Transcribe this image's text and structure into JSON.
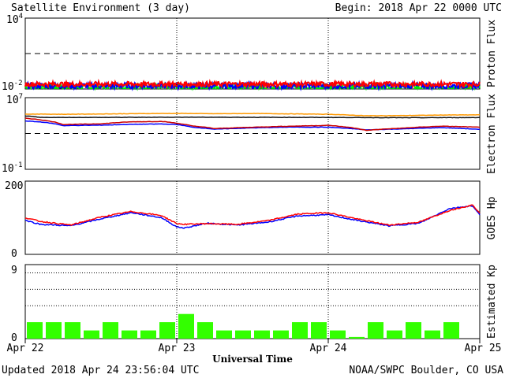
{
  "header": {
    "title": "Satellite Environment (3 day)",
    "begin": "Begin:  2018 Apr 22 0000 UTC"
  },
  "footer": {
    "updated": "Updated 2018 Apr 24 23:56:04 UTC",
    "credit": "NOAA/SWPC Boulder, CO USA"
  },
  "chart_data": [
    {
      "type": "line",
      "panel": "proton",
      "ylabel": "Proton Flux",
      "yscale": "log",
      "ylim": [
        0.01,
        10000
      ],
      "ytick_labels": [
        {
          "base": "10",
          "exp": "4",
          "value": 10000
        },
        {
          "base": "10",
          "exp": "-2",
          "value": 0.01
        }
      ],
      "threshold": 10,
      "xlim": [
        "2018-04-22",
        "2018-04-25"
      ],
      "series": [
        {
          "color": "#ff0000",
          "level": 0.026,
          "noise": 0.1
        },
        {
          "color": "#0000ff",
          "level": 0.019,
          "noise": 0.12
        },
        {
          "color": "#00ee00",
          "level": 0.0135,
          "noise": 0.14
        }
      ]
    },
    {
      "type": "line",
      "panel": "electron",
      "ylabel": "Electron Flux",
      "yscale": "log",
      "ylim": [
        0.1,
        10000000
      ],
      "ytick_labels": [
        {
          "base": "10",
          "exp": "7",
          "value": 10000000
        },
        {
          "base": "10",
          "exp": "-1",
          "value": 0.1
        }
      ],
      "threshold": 1000,
      "xlim": [
        "2018-04-22",
        "2018-04-25"
      ],
      "series": [
        {
          "color": "#ff9900",
          "x": [
            0,
            0.25,
            0.5,
            0.75,
            1.0,
            1.25,
            1.5,
            1.75,
            2.0,
            2.25,
            2.5,
            2.75,
            3.0
          ],
          "y": [
            150000,
            140000,
            150000,
            165000,
            175000,
            160000,
            170000,
            155000,
            140000,
            95000,
            100000,
            115000,
            120000
          ]
        },
        {
          "color": "#0000ff",
          "x": [
            0,
            0.12,
            0.25,
            0.5,
            0.7,
            0.9,
            1.0,
            1.1,
            1.25,
            1.5,
            1.75,
            2.0,
            2.25,
            2.5,
            2.75,
            3.0
          ],
          "y": [
            25000,
            18000,
            7500,
            8500,
            10500,
            11500,
            10000,
            5000,
            3000,
            4200,
            5200,
            5000,
            2500,
            3300,
            4500,
            2800
          ]
        },
        {
          "color": "#cc0000",
          "x": [
            0,
            0.12,
            0.25,
            0.5,
            0.7,
            0.9,
            1.0,
            1.1,
            1.25,
            1.5,
            1.75,
            2.0,
            2.25,
            2.5,
            2.75,
            3.0
          ],
          "y": [
            50000,
            30000,
            10000,
            12000,
            20000,
            22000,
            14000,
            7000,
            3500,
            5000,
            6500,
            8000,
            2200,
            4000,
            6500,
            5000
          ]
        },
        {
          "color": "#111111",
          "x": [
            0,
            0.1,
            0.5,
            1.0,
            1.5,
            2.0,
            2.5,
            3.0
          ],
          "y": [
            90000,
            62000,
            62000,
            66000,
            64000,
            62000,
            57000,
            60000
          ]
        }
      ]
    },
    {
      "type": "line",
      "panel": "hp",
      "ylabel": "GOES Hp",
      "ylim": [
        0,
        200
      ],
      "ytick_labels": [
        "200",
        "0"
      ],
      "xlim": [
        "2018-04-22",
        "2018-04-25"
      ],
      "series": [
        {
          "color": "#0000ff",
          "x": [
            0,
            0.1,
            0.3,
            0.5,
            0.7,
            0.9,
            1.0,
            1.05,
            1.2,
            1.4,
            1.6,
            1.8,
            2.0,
            2.2,
            2.4,
            2.6,
            2.8,
            2.95,
            3.0
          ],
          "y": [
            93,
            82,
            78,
            97,
            114,
            100,
            75,
            72,
            85,
            80,
            88,
            105,
            108,
            92,
            78,
            85,
            125,
            133,
            108
          ]
        },
        {
          "color": "#ff0000",
          "x": [
            0,
            0.1,
            0.3,
            0.5,
            0.7,
            0.9,
            1.0,
            1.05,
            1.2,
            1.4,
            1.6,
            1.8,
            2.0,
            2.2,
            2.4,
            2.6,
            2.8,
            2.95,
            3.0
          ],
          "y": [
            100,
            90,
            80,
            102,
            117,
            106,
            84,
            82,
            84,
            82,
            92,
            110,
            114,
            96,
            80,
            88,
            120,
            135,
            114
          ]
        }
      ]
    },
    {
      "type": "bar",
      "panel": "kp",
      "ylabel": "Estimated Kp",
      "ylim": [
        0,
        9
      ],
      "ytick_labels": [
        "9",
        "0"
      ],
      "gridlines": [
        4,
        6,
        8
      ],
      "xlim": [
        "2018-04-22",
        "2018-04-25"
      ],
      "xtick_labels": [
        "Apr 22",
        "Apr 23",
        "Apr 24",
        "Apr 25"
      ],
      "xlabel": "Universal Time",
      "bar_color": "#33ff00",
      "values": [
        2,
        2,
        2,
        1,
        2,
        1,
        1,
        2,
        3,
        2,
        1,
        1,
        1,
        1,
        2,
        2,
        1,
        0.2,
        2,
        1,
        2,
        1,
        2,
        0
      ]
    }
  ]
}
